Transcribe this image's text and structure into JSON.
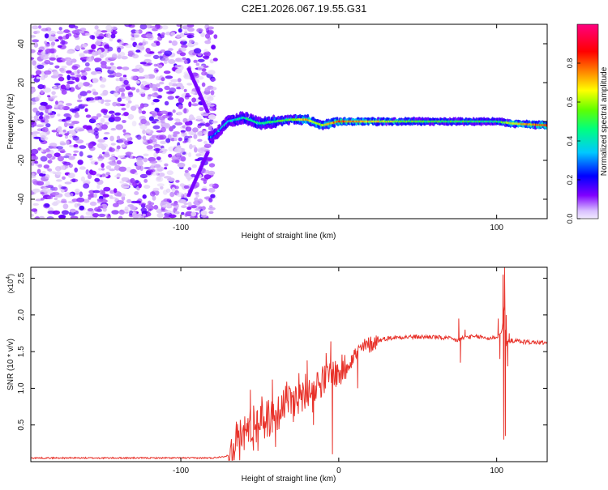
{
  "title": "C2E1.2026.067.19.55.G31",
  "chart_data": [
    {
      "type": "heatmap",
      "xlabel": "Height of straight line (km)",
      "ylabel": "Frequency (Hz)",
      "xlim": [
        -195,
        132
      ],
      "ylim": [
        -50,
        50
      ],
      "xticks": [
        -100,
        0,
        100
      ],
      "xticklabels": [
        "-100",
        "",
        "100"
      ],
      "yticks": [
        -40,
        -20,
        0,
        20,
        40
      ],
      "colorbar": {
        "label": "Normalized spectral amplitude",
        "range": [
          0,
          1
        ],
        "ticks": [
          0.0,
          0.2,
          0.4,
          0.6,
          0.8
        ],
        "ticklabels": [
          "0.0",
          "0.2",
          "0.4",
          "0.6",
          "0.8"
        ],
        "colors": [
          "#e8dcf8",
          "#8000ff",
          "#0000ff",
          "#00c8ff",
          "#00ff80",
          "#60ff00",
          "#ffff00",
          "#ff8000",
          "#ff0000",
          "#ff0080"
        ]
      },
      "ridge": {
        "x": [
          -80,
          -70,
          -60,
          -50,
          -40,
          -30,
          -20,
          -10,
          0,
          20,
          40,
          60,
          80,
          100,
          110,
          132
        ],
        "frequency": [
          -8,
          0,
          2,
          -1,
          0,
          1,
          1,
          -2,
          0,
          0,
          0,
          0,
          0,
          0,
          -1,
          -2
        ],
        "amplitude": [
          0.3,
          0.35,
          0.4,
          0.45,
          0.5,
          0.55,
          0.75,
          0.6,
          0.85,
          0.7,
          0.55,
          0.5,
          0.5,
          0.45,
          0.7,
          0.85
        ]
      }
    },
    {
      "type": "line",
      "xlabel": "Height of straight line (km)",
      "ylabel": "SNR (10 * v/v)",
      "y_multiplier": "(x10",
      "y_multiplier_exp": "4",
      "y_multiplier_close": ")",
      "xlim": [
        -195,
        132
      ],
      "ylim": [
        0,
        2.65
      ],
      "xticks": [
        -100,
        0,
        100
      ],
      "xticklabels": [
        "-100",
        "0",
        "100"
      ],
      "yticks": [
        0.5,
        1.0,
        1.5,
        2.0,
        2.5
      ],
      "yticklabels": [
        "0.5",
        "1.0",
        "1.5",
        "2.0",
        "2.5"
      ],
      "color": "#e8322a",
      "series": [
        {
          "x": [
            -195,
            -150,
            -100,
            -80,
            -70,
            -65,
            -60,
            -55,
            -50,
            -45,
            -40,
            -35,
            -30,
            -25,
            -20,
            -15,
            -10,
            -5,
            0,
            5,
            10,
            15,
            20,
            25,
            30,
            40,
            50,
            60,
            70,
            75,
            80,
            90,
            95,
            100,
            103,
            105,
            106,
            108,
            110,
            120,
            132
          ],
          "values": [
            0.05,
            0.05,
            0.05,
            0.05,
            0.08,
            0.25,
            0.4,
            0.48,
            0.55,
            0.6,
            0.65,
            0.8,
            0.85,
            0.9,
            1.0,
            1.05,
            1.1,
            1.2,
            1.2,
            1.3,
            1.45,
            1.55,
            1.6,
            1.65,
            1.68,
            1.7,
            1.7,
            1.7,
            1.68,
            1.65,
            1.7,
            1.7,
            1.68,
            1.7,
            1.75,
            2.1,
            1.6,
            1.65,
            1.65,
            1.63,
            1.62
          ]
        }
      ]
    }
  ]
}
